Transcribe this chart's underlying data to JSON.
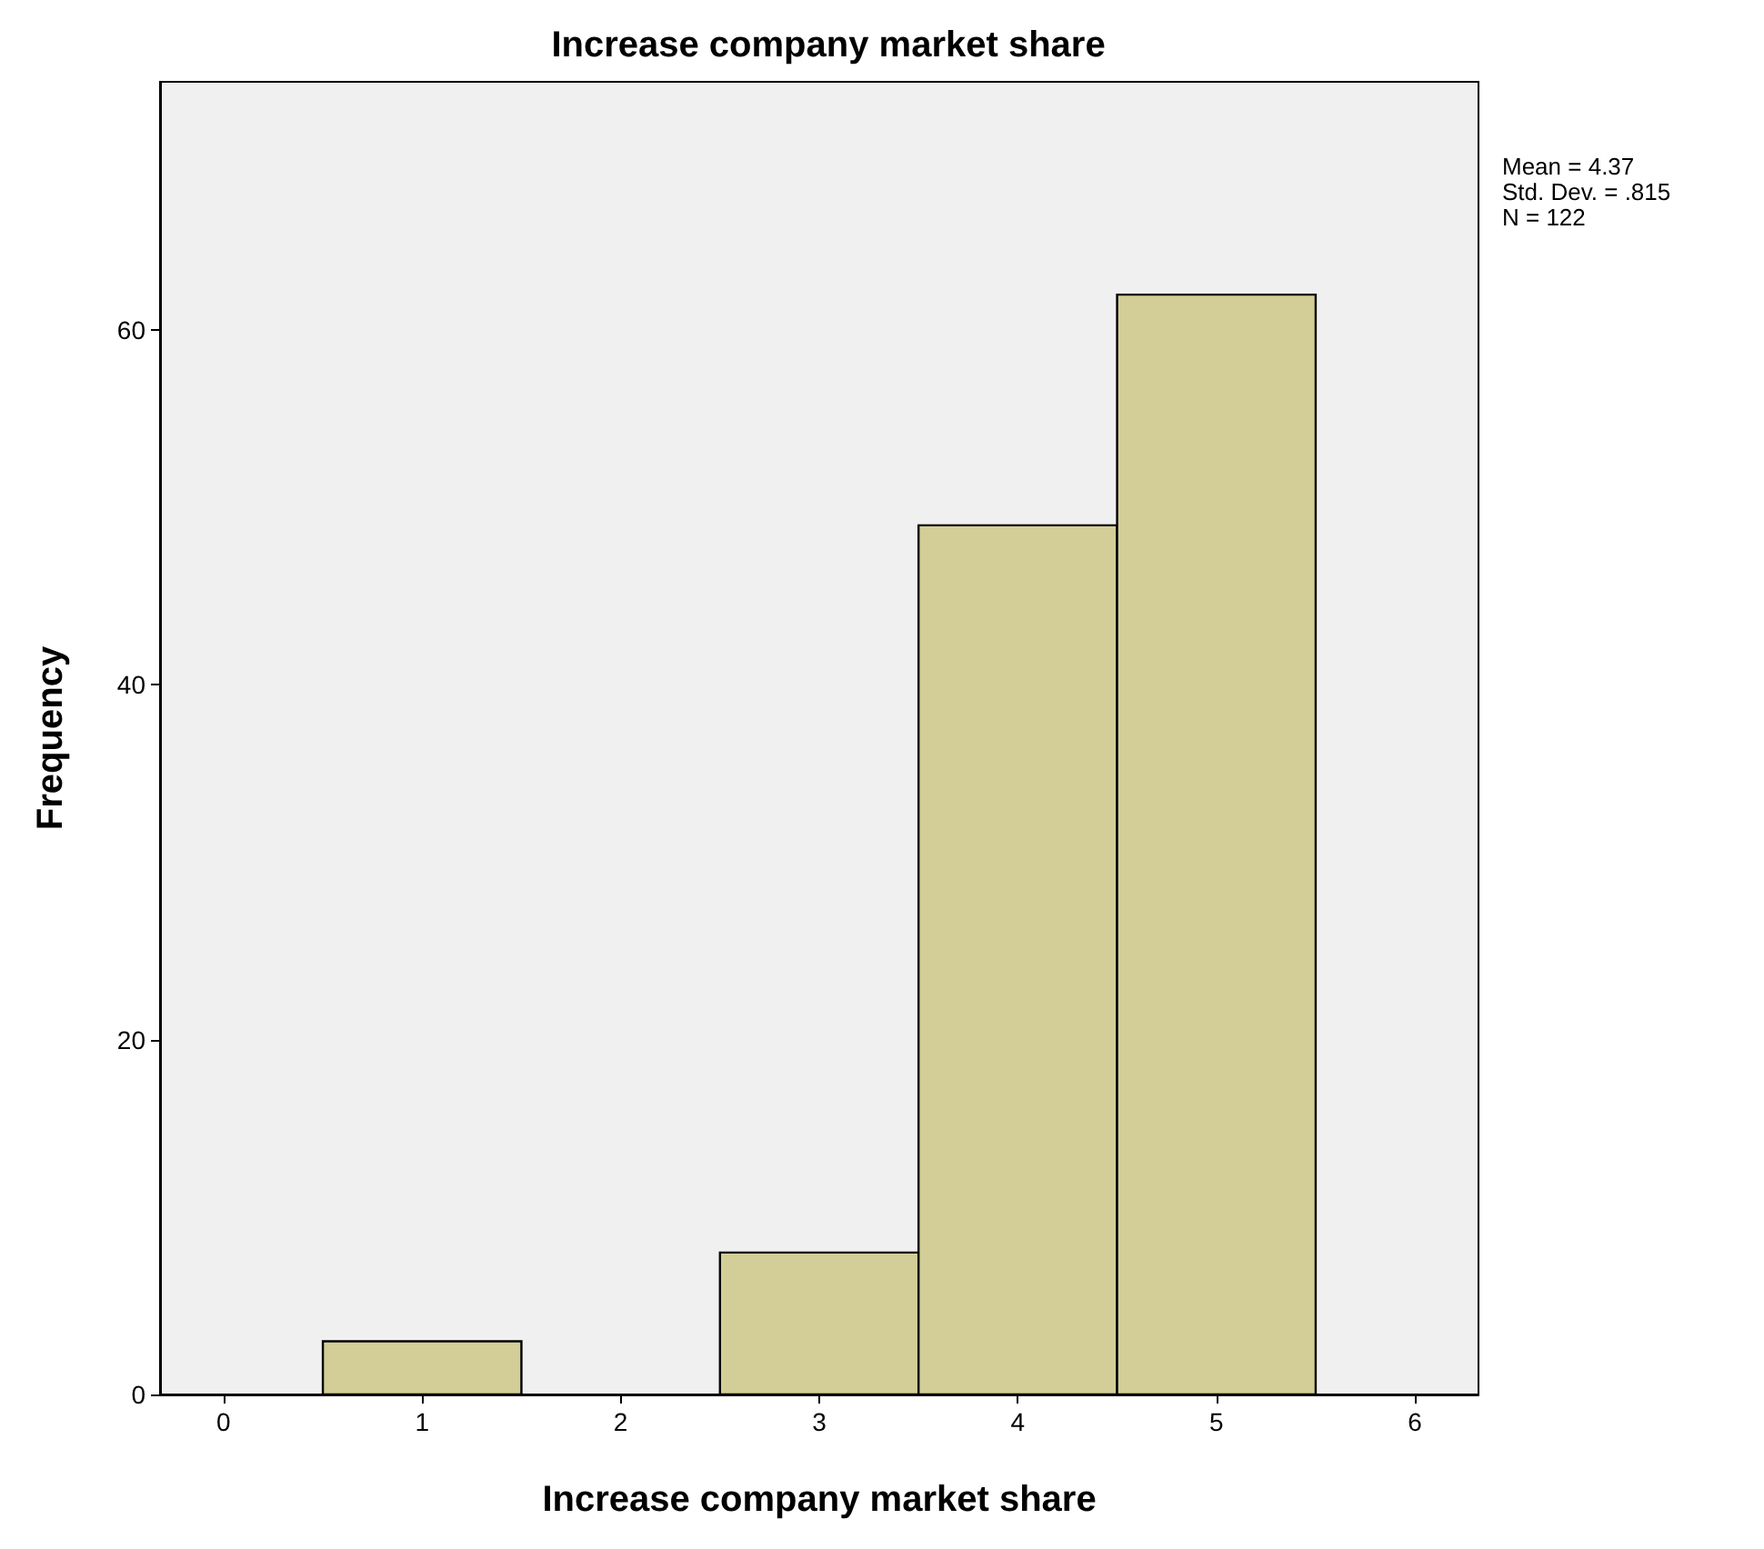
{
  "chart_data": {
    "type": "histogram",
    "title": "Increase company market share",
    "xlabel": "Increase company market share",
    "ylabel": "Frequency",
    "bins": [
      0.5,
      1.5,
      2.5,
      3.5,
      4.5,
      5.5
    ],
    "values": [
      3,
      0,
      8,
      49,
      62
    ],
    "color": "#d3ce97",
    "xlim": [
      -0.32,
      6.32
    ],
    "xticks": [
      0,
      1,
      2,
      3,
      4,
      5,
      6
    ],
    "ylim": [
      0,
      74
    ],
    "yticks": [
      0,
      20,
      40,
      60
    ],
    "grid": false,
    "annotations": [
      "Mean = 4.37",
      "Std. Dev. = .815",
      "N = 122"
    ]
  }
}
